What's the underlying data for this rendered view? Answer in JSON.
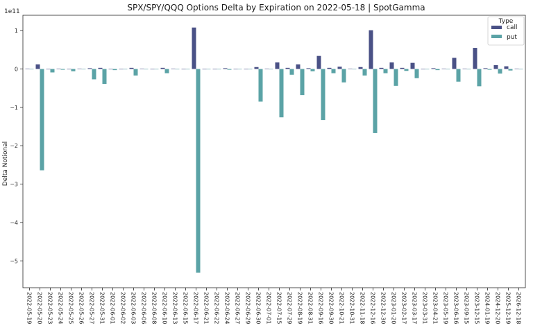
{
  "chart_data": {
    "type": "bar",
    "title": "SPX/SPY/QQQ Options Delta by Expiration on 2022-05-18 | SpotGamma",
    "xlabel": "",
    "ylabel": "Delta Notional",
    "offset_label": "1e11",
    "ylim": [
      -5.7,
      1.4
    ],
    "yticks": [
      1,
      0,
      -1,
      -2,
      -3,
      -4,
      -5
    ],
    "ytick_labels": [
      "1",
      "0",
      "−1",
      "−2",
      "−3",
      "−4",
      "−5"
    ],
    "legend": {
      "title": "Type",
      "placement": "top-right"
    },
    "colors": {
      "call": "#4a5186",
      "put": "#5ba3a6"
    },
    "categories": [
      "2022-05-19",
      "2022-05-20",
      "2022-05-23",
      "2022-05-24",
      "2022-05-25",
      "2022-05-26",
      "2022-05-27",
      "2022-05-31",
      "2022-06-01",
      "2022-06-02",
      "2022-06-03",
      "2022-06-06",
      "2022-06-08",
      "2022-06-10",
      "2022-06-13",
      "2022-06-15",
      "2022-06-17",
      "2022-06-21",
      "2022-06-22",
      "2022-06-24",
      "2022-06-27",
      "2022-06-29",
      "2022-06-30",
      "2022-07-01",
      "2022-07-15",
      "2022-07-29",
      "2022-08-19",
      "2022-08-31",
      "2022-09-16",
      "2022-09-30",
      "2022-10-21",
      "2022-10-31",
      "2022-11-18",
      "2022-12-16",
      "2022-12-30",
      "2023-01-20",
      "2023-02-17",
      "2023-03-17",
      "2023-03-31",
      "2023-04-21",
      "2023-05-19",
      "2023-06-16",
      "2023-09-15",
      "2023-12-15",
      "2024-01-19",
      "2024-12-20",
      "2025-12-19",
      "2026-12-18"
    ],
    "series": [
      {
        "name": "call",
        "values": [
          0.01,
          0.12,
          0.0,
          0.01,
          0.0,
          0.01,
          0.02,
          0.03,
          0.0,
          0.0,
          0.03,
          0.01,
          0.0,
          0.03,
          0.01,
          0.0,
          1.08,
          0.0,
          0.0,
          0.02,
          0.0,
          0.0,
          0.05,
          0.01,
          0.17,
          0.03,
          0.12,
          0.02,
          0.34,
          0.03,
          0.06,
          0.01,
          0.05,
          1.01,
          0.03,
          0.17,
          0.03,
          0.16,
          0.0,
          0.02,
          0.01,
          0.29,
          0.01,
          0.55,
          0.02,
          0.1,
          0.07,
          0.01
        ]
      },
      {
        "name": "put",
        "values": [
          0.0,
          -2.64,
          -0.09,
          -0.02,
          -0.06,
          -0.01,
          -0.27,
          -0.39,
          -0.03,
          0.0,
          -0.17,
          -0.01,
          -0.01,
          -0.11,
          -0.01,
          -0.01,
          -5.31,
          0.0,
          -0.01,
          -0.02,
          0.0,
          0.0,
          -0.85,
          -0.01,
          -1.26,
          -0.15,
          -0.68,
          -0.06,
          -1.33,
          -0.11,
          -0.35,
          -0.01,
          -0.17,
          -1.67,
          -0.11,
          -0.44,
          -0.05,
          -0.24,
          -0.01,
          -0.03,
          -0.01,
          -0.33,
          0.0,
          -0.45,
          -0.02,
          -0.12,
          -0.04,
          -0.01
        ]
      }
    ]
  }
}
